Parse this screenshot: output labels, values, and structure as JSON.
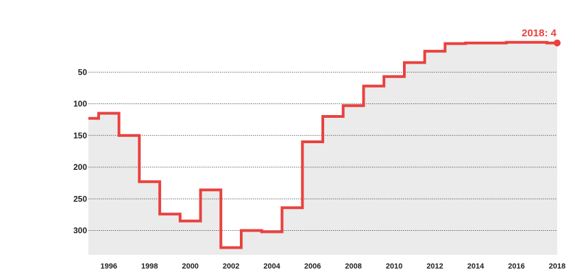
{
  "chart_data": {
    "type": "line",
    "step": true,
    "y_inverted": true,
    "x": [
      1995,
      1996,
      1997,
      1998,
      1999,
      2000,
      2001,
      2002,
      2003,
      2004,
      2005,
      2006,
      2007,
      2008,
      2009,
      2010,
      2011,
      2012,
      2013,
      2014,
      2015,
      2016,
      2017,
      2018
    ],
    "series": [
      {
        "values": [
          123,
          115,
          150,
          223,
          274,
          285,
          236,
          327,
          300,
          302,
          264,
          160,
          120,
          103,
          72,
          57,
          35,
          17,
          5,
          4,
          4,
          3,
          3,
          4
        ]
      }
    ],
    "xlim": [
      1995,
      2018
    ],
    "ylim": [
      0,
      340
    ],
    "y_ticks": [
      "50",
      "100",
      "150",
      "200",
      "250",
      "300"
    ],
    "x_ticks": [
      "1996",
      "1998",
      "2000",
      "2002",
      "2004",
      "2006",
      "2008",
      "2010",
      "2012",
      "2014",
      "2016",
      "2018"
    ],
    "grid": true,
    "annotation": {
      "label": "2018: 4",
      "x": 2018,
      "y": 4
    },
    "colors": {
      "line": "#e8423f",
      "fill": "#ebebeb",
      "grid": "#333333"
    }
  }
}
